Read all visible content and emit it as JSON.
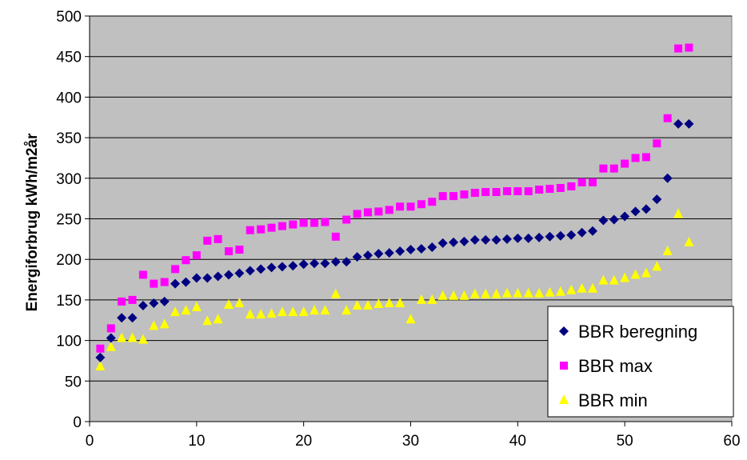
{
  "chart_data": {
    "type": "scatter",
    "title": "",
    "xlabel": "",
    "ylabel": "Energiforbrug kWh/m2år",
    "xlim": [
      0,
      60
    ],
    "ylim": [
      0,
      500
    ],
    "xticks": [
      0,
      10,
      20,
      30,
      40,
      50,
      60
    ],
    "yticks": [
      0,
      50,
      100,
      150,
      200,
      250,
      300,
      350,
      400,
      450,
      500
    ],
    "grid": "horizontal",
    "legend_position": "bottom-right",
    "plot_background": "#c0c0c0",
    "series": [
      {
        "name": "BBR beregning",
        "marker": "diamond",
        "color": "#000080",
        "x": [
          1,
          2,
          3,
          4,
          5,
          6,
          7,
          8,
          9,
          10,
          11,
          12,
          13,
          14,
          15,
          16,
          17,
          18,
          19,
          20,
          21,
          22,
          23,
          24,
          25,
          26,
          27,
          28,
          29,
          30,
          31,
          32,
          33,
          34,
          35,
          36,
          37,
          38,
          39,
          40,
          41,
          42,
          43,
          44,
          45,
          46,
          47,
          48,
          49,
          50,
          51,
          52,
          53,
          54,
          55,
          56
        ],
        "y": [
          79,
          103,
          128,
          128,
          143,
          146,
          148,
          170,
          172,
          177,
          177,
          179,
          181,
          183,
          186,
          188,
          190,
          191,
          192,
          194,
          195,
          195,
          197,
          197,
          203,
          205,
          207,
          208,
          210,
          212,
          213,
          215,
          220,
          221,
          222,
          224,
          224,
          224,
          225,
          226,
          226,
          227,
          228,
          229,
          230,
          233,
          235,
          248,
          249,
          253,
          259,
          262,
          274,
          300,
          367,
          367
        ]
      },
      {
        "name": "BBR max",
        "marker": "square",
        "color": "#ff00ff",
        "x": [
          1,
          2,
          3,
          4,
          5,
          6,
          7,
          8,
          9,
          10,
          11,
          12,
          13,
          14,
          15,
          16,
          17,
          18,
          19,
          20,
          21,
          22,
          23,
          24,
          25,
          26,
          27,
          28,
          29,
          30,
          31,
          32,
          33,
          34,
          35,
          36,
          37,
          38,
          39,
          40,
          41,
          42,
          43,
          44,
          45,
          46,
          47,
          48,
          49,
          50,
          51,
          52,
          53,
          54,
          55,
          56
        ],
        "y": [
          90,
          115,
          148,
          150,
          181,
          170,
          172,
          188,
          199,
          205,
          223,
          225,
          210,
          212,
          236,
          237,
          239,
          241,
          243,
          245,
          245,
          246,
          228,
          249,
          256,
          258,
          259,
          261,
          265,
          265,
          268,
          271,
          278,
          278,
          280,
          282,
          283,
          283,
          284,
          284,
          284,
          286,
          287,
          288,
          290,
          295,
          295,
          312,
          312,
          318,
          325,
          326,
          343,
          374,
          460,
          461
        ]
      },
      {
        "name": "BBR min",
        "marker": "triangle",
        "color": "#ffff00",
        "x": [
          1,
          2,
          3,
          4,
          5,
          6,
          7,
          8,
          9,
          10,
          11,
          12,
          13,
          14,
          15,
          16,
          17,
          18,
          19,
          20,
          21,
          22,
          23,
          24,
          25,
          26,
          27,
          28,
          29,
          30,
          31,
          32,
          33,
          34,
          35,
          36,
          37,
          38,
          39,
          40,
          41,
          42,
          43,
          44,
          45,
          46,
          47,
          48,
          49,
          50,
          51,
          52,
          53,
          54,
          55,
          56
        ],
        "y": [
          68,
          92,
          103,
          103,
          101,
          118,
          120,
          135,
          137,
          141,
          124,
          126,
          144,
          146,
          132,
          132,
          133,
          135,
          135,
          135,
          137,
          137,
          157,
          137,
          143,
          143,
          145,
          146,
          146,
          126,
          150,
          150,
          155,
          155,
          155,
          157,
          157,
          157,
          158,
          158,
          158,
          158,
          159,
          160,
          162,
          164,
          164,
          174,
          174,
          177,
          181,
          183,
          191,
          210,
          256,
          221
        ]
      }
    ]
  }
}
